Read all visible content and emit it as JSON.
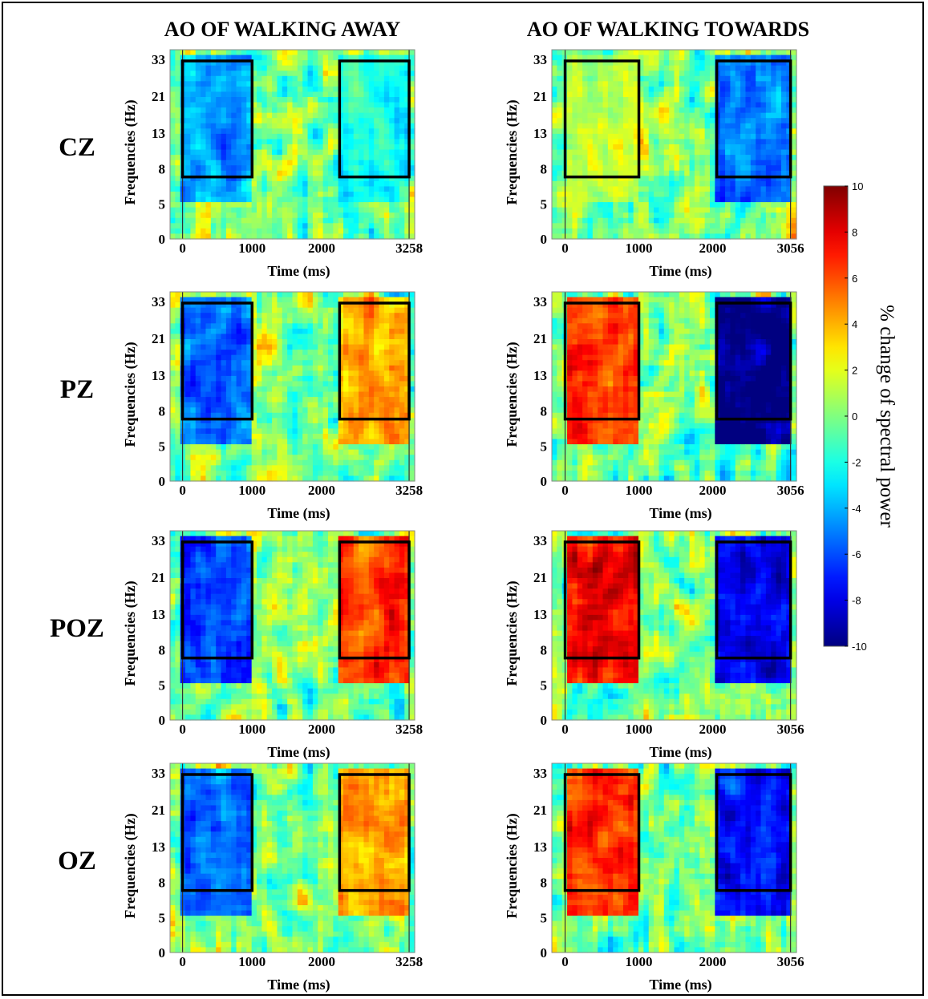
{
  "chart_data": {
    "type": "heatmap",
    "column_titles": [
      "AO OF WALKING AWAY",
      "AO OF WALKING TOWARDS"
    ],
    "row_labels": [
      "CZ",
      "PZ",
      "POZ",
      "OZ"
    ],
    "ylabel": "Frequencies  (Hz)",
    "xlabel": "Time (ms)",
    "yticks": [
      0,
      5,
      8,
      13,
      21,
      33
    ],
    "xticks_columns": [
      [
        "0",
        "1000",
        "2000",
        "3258"
      ],
      [
        "0",
        "1000",
        "2000",
        "3056"
      ]
    ],
    "columns_time_max_ms": [
      3258,
      3056
    ],
    "frequency_range_hz": [
      0,
      35
    ],
    "windows": [
      {
        "time_ms": [
          0,
          1000
        ],
        "freq_hz": [
          8,
          33
        ]
      },
      {
        "time_ms": [
          2258,
          3258
        ],
        "freq_hz": [
          8,
          33
        ],
        "column": 0
      },
      {
        "time_ms": [
          2056,
          3056
        ],
        "freq_hz": [
          8,
          33
        ],
        "column": 1
      }
    ],
    "colorbar": {
      "label": "% change of spectral power",
      "range": [
        -10,
        10
      ],
      "ticks": [
        10,
        8,
        6,
        4,
        2,
        0,
        -2,
        -4,
        -6,
        -8,
        -10
      ],
      "colormap": "jet"
    },
    "approximate_window_means_percent": {
      "CZ": {
        "away": [
          -4,
          -2
        ],
        "towards": [
          1,
          -5
        ]
      },
      "PZ": {
        "away": [
          -5,
          4
        ],
        "towards": [
          6,
          -9
        ]
      },
      "POZ": {
        "away": [
          -6,
          6
        ],
        "towards": [
          7,
          -7
        ]
      },
      "OZ": {
        "away": [
          -5,
          4
        ],
        "towards": [
          6,
          -7
        ]
      }
    }
  }
}
